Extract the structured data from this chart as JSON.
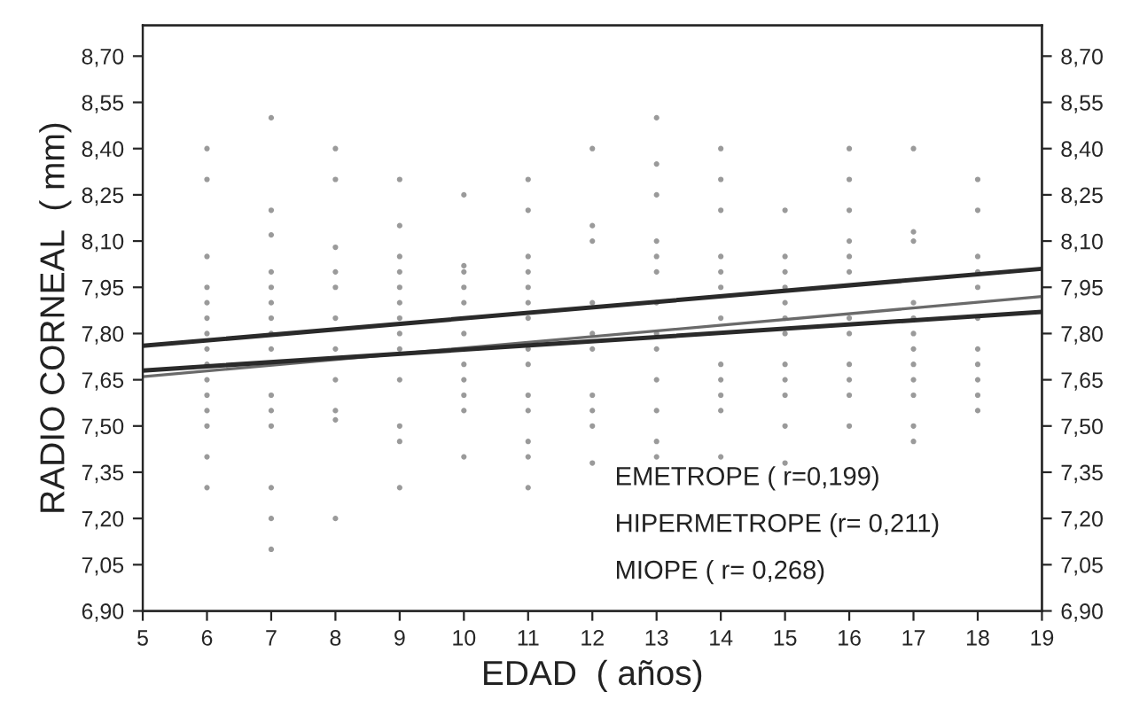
{
  "chart_data": {
    "type": "line",
    "xlabel": "EDAD  ( años)",
    "ylabel": "RADIO CORNEAL  ( mm)",
    "xlim": [
      5,
      19
    ],
    "xticks": [
      5,
      6,
      7,
      8,
      9,
      10,
      11,
      12,
      13,
      14,
      15,
      16,
      17,
      18,
      19
    ],
    "ylim": [
      6.9,
      8.8
    ],
    "yticks": [
      {
        "value": 6.9,
        "label": "6,90"
      },
      {
        "value": 7.05,
        "label": "7,05"
      },
      {
        "value": 7.2,
        "label": "7,20"
      },
      {
        "value": 7.35,
        "label": "7,35"
      },
      {
        "value": 7.5,
        "label": "7,50"
      },
      {
        "value": 7.65,
        "label": "7,65"
      },
      {
        "value": 7.8,
        "label": "7,80"
      },
      {
        "value": 7.95,
        "label": "7,95"
      },
      {
        "value": 8.1,
        "label": "8,10"
      },
      {
        "value": 8.25,
        "label": "8,25"
      },
      {
        "value": 8.4,
        "label": "8,40"
      },
      {
        "value": 8.55,
        "label": "8,55"
      },
      {
        "value": 8.7,
        "label": "8,70"
      }
    ],
    "y2lim": [
      6.9,
      8.8
    ],
    "y2ticks": [
      {
        "value": 6.9,
        "label": "6,90"
      },
      {
        "value": 7.05,
        "label": "7,05"
      },
      {
        "value": 7.2,
        "label": "7,20"
      },
      {
        "value": 7.35,
        "label": "7,35"
      },
      {
        "value": 7.5,
        "label": "7,50"
      },
      {
        "value": 7.65,
        "label": "7,65"
      },
      {
        "value": 7.8,
        "label": "7,80"
      },
      {
        "value": 7.95,
        "label": "7,95"
      },
      {
        "value": 8.1,
        "label": "8,10"
      },
      {
        "value": 8.25,
        "label": "8,25"
      },
      {
        "value": 8.4,
        "label": "8,40"
      },
      {
        "value": 8.55,
        "label": "8,55"
      },
      {
        "value": 8.7,
        "label": "8,70"
      }
    ],
    "grid": false,
    "legend": false,
    "annotations": [
      "EMETROPE ( r=0,199)",
      "HIPERMETROPE (r= 0,211)",
      "MIOPE ( r= 0,268)"
    ],
    "series": [
      {
        "type": "scatter",
        "color": "#9a9a9a",
        "marker": "circle",
        "x": [
          6,
          6,
          6,
          6,
          6,
          6,
          6,
          6,
          6,
          6,
          6,
          6,
          6,
          6,
          6,
          7,
          7,
          7,
          7,
          7,
          7,
          7,
          7,
          7,
          7,
          7,
          7,
          7,
          7,
          7,
          8,
          8,
          8,
          8,
          8,
          8,
          8,
          8,
          8,
          8,
          8,
          9,
          9,
          9,
          9,
          9,
          9,
          9,
          9,
          9,
          9,
          9,
          9,
          9,
          10,
          10,
          10,
          10,
          10,
          10,
          10,
          10,
          10,
          10,
          10,
          11,
          11,
          11,
          11,
          11,
          11,
          11,
          11,
          11,
          11,
          11,
          11,
          11,
          11,
          12,
          12,
          12,
          12,
          12,
          12,
          12,
          12,
          12,
          12,
          13,
          13,
          13,
          13,
          13,
          13,
          13,
          13,
          13,
          13,
          13,
          13,
          13,
          14,
          14,
          14,
          14,
          14,
          14,
          14,
          14,
          14,
          14,
          14,
          14,
          15,
          15,
          15,
          15,
          15,
          15,
          15,
          15,
          15,
          15,
          15,
          15,
          16,
          16,
          16,
          16,
          16,
          16,
          16,
          16,
          16,
          16,
          16,
          16,
          17,
          17,
          17,
          17,
          17,
          17,
          17,
          17,
          17,
          17,
          17,
          17,
          18,
          18,
          18,
          18,
          18,
          18,
          18,
          18,
          18,
          18,
          18
        ],
        "values": [
          8.4,
          8.3,
          8.05,
          7.95,
          7.9,
          7.85,
          7.8,
          7.75,
          7.7,
          7.65,
          7.6,
          7.55,
          7.5,
          7.4,
          7.3,
          8.5,
          8.2,
          8.12,
          8.0,
          7.95,
          7.9,
          7.85,
          7.8,
          7.75,
          7.6,
          7.55,
          7.5,
          7.3,
          7.2,
          7.1,
          8.4,
          8.3,
          8.08,
          8.0,
          7.95,
          7.85,
          7.75,
          7.65,
          7.55,
          7.52,
          7.2,
          8.3,
          8.15,
          8.05,
          8.0,
          7.95,
          7.9,
          7.85,
          7.8,
          7.75,
          7.65,
          7.5,
          7.45,
          7.3,
          8.25,
          8.02,
          8.0,
          7.95,
          7.9,
          7.8,
          7.7,
          7.65,
          7.6,
          7.55,
          7.4,
          8.3,
          8.2,
          8.05,
          8.0,
          7.95,
          7.9,
          7.85,
          7.75,
          7.7,
          7.6,
          7.55,
          7.45,
          7.4,
          7.3,
          8.4,
          8.15,
          8.1,
          7.9,
          7.8,
          7.75,
          7.6,
          7.55,
          7.5,
          7.38,
          8.5,
          8.35,
          8.25,
          8.1,
          8.05,
          8.0,
          7.9,
          7.8,
          7.75,
          7.65,
          7.55,
          7.45,
          7.4,
          8.4,
          8.3,
          8.2,
          8.05,
          8.0,
          7.95,
          7.85,
          7.7,
          7.65,
          7.6,
          7.55,
          7.4,
          8.2,
          8.05,
          8.0,
          7.95,
          7.9,
          7.85,
          7.8,
          7.7,
          7.65,
          7.6,
          7.5,
          7.38,
          8.4,
          8.3,
          8.2,
          8.1,
          8.05,
          8.0,
          7.85,
          7.8,
          7.7,
          7.65,
          7.6,
          7.5,
          8.4,
          8.13,
          8.1,
          7.9,
          7.85,
          7.8,
          7.75,
          7.7,
          7.65,
          7.6,
          7.5,
          7.45,
          8.3,
          8.2,
          8.05,
          8.0,
          7.95,
          7.85,
          7.75,
          7.7,
          7.65,
          7.6,
          7.55
        ]
      },
      {
        "color": "#2a2a2a",
        "x": [
          5,
          19
        ],
        "values": [
          7.76,
          8.01
        ]
      },
      {
        "color": "#6a6a6a",
        "x": [
          5,
          19
        ],
        "values": [
          7.66,
          7.92
        ]
      },
      {
        "color": "#2a2a2a",
        "x": [
          5,
          19
        ],
        "values": [
          7.68,
          7.87
        ]
      }
    ]
  }
}
